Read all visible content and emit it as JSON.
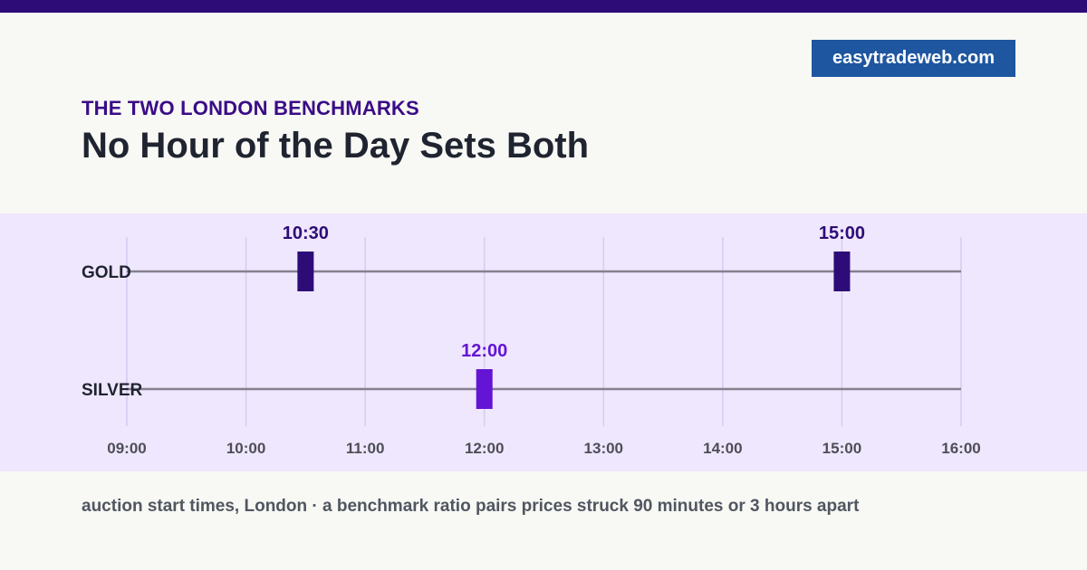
{
  "brand": {
    "label": "easytradeweb.com"
  },
  "header": {
    "kicker": "THE TWO LONDON BENCHMARKS",
    "title": "No Hour of the Day Sets Both"
  },
  "caption": "auction start times, London · a benchmark ratio pairs prices struck 90 minutes or 3 hours apart",
  "colors": {
    "top_bar": "#2e0c78",
    "brand_bg": "#1e56a0",
    "band_bg": "#efe7fd",
    "gold_marker": "#2e0c78",
    "silver_marker": "#6414d4",
    "track": "#85808f",
    "gridline": "#d7cbf0"
  },
  "chart_data": {
    "type": "timeline",
    "x": [
      "09:00",
      "10:00",
      "11:00",
      "12:00",
      "13:00",
      "14:00",
      "15:00",
      "16:00"
    ],
    "xlim": [
      "09:00",
      "16:00"
    ],
    "grid": true,
    "series": [
      {
        "name": "GOLD",
        "times": [
          "10:30",
          "15:00"
        ],
        "labels": [
          "10:30",
          "15:00"
        ]
      },
      {
        "name": "SILVER",
        "times": [
          "12:00"
        ],
        "labels": [
          "12:00"
        ]
      }
    ]
  }
}
